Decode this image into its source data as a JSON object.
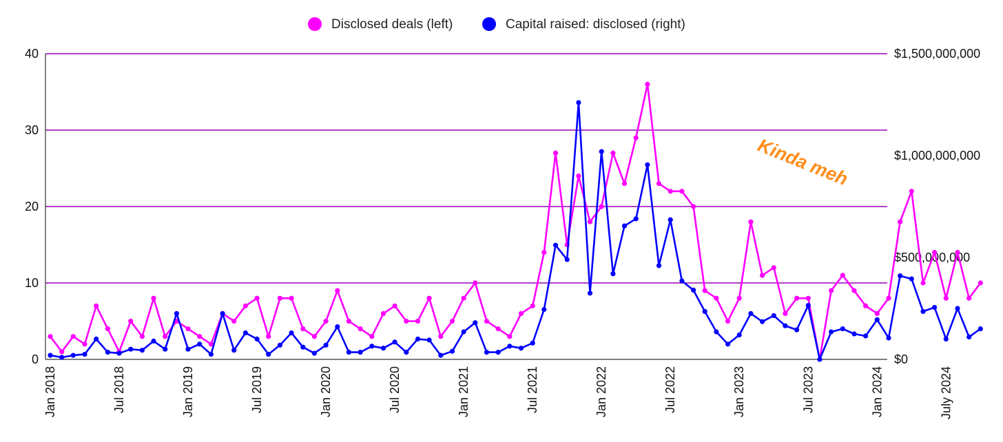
{
  "chart_data": {
    "type": "line",
    "title": "",
    "xlabel": "",
    "legend_position": "top",
    "grid": true,
    "x_tick_labels": [
      "Jan 2018",
      "Jul 2018",
      "Jan 2019",
      "Jul 2019",
      "Jan 2020",
      "Jul 2020",
      "Jan 2021",
      "Jul 2021",
      "Jan 2022",
      "Jul 2022",
      "Jan 2023",
      "Jul 2023",
      "Jan 2024",
      "July 2024"
    ],
    "y_left": {
      "ylim": [
        0,
        40
      ],
      "ticks": [
        "0",
        "10",
        "20",
        "30",
        "40"
      ]
    },
    "y_right": {
      "ylim": [
        0,
        1500000000
      ],
      "ticks": [
        "$0",
        "$500,000,000",
        "$1,000,000,000",
        "$1,500,000,000"
      ]
    },
    "series": [
      {
        "name": "Disclosed deals (left)",
        "axis": "left",
        "color": "#FF00FF",
        "values": [
          3,
          1,
          3,
          2,
          7,
          4,
          1,
          5,
          3,
          8,
          3,
          5,
          4,
          3,
          2,
          6,
          5,
          7,
          8,
          3,
          8,
          8,
          4,
          3,
          5,
          9,
          5,
          4,
          3,
          6,
          7,
          5,
          5,
          8,
          3,
          5,
          8,
          10,
          5,
          4,
          3,
          6,
          7,
          14,
          27,
          15,
          24,
          18,
          20,
          27,
          23,
          29,
          36,
          23,
          22,
          22,
          20,
          9,
          8,
          5,
          8,
          18,
          11,
          12,
          6,
          8,
          8,
          0,
          9,
          11,
          9,
          7,
          6,
          8,
          18,
          22,
          10,
          14,
          8,
          14,
          8,
          10
        ]
      },
      {
        "name": "Capital raised: disclosed (right)",
        "axis": "right",
        "color": "#0000FF",
        "values": [
          20000000,
          10000000,
          20000000,
          25000000,
          100000000,
          35000000,
          30000000,
          50000000,
          45000000,
          90000000,
          50000000,
          225000000,
          50000000,
          75000000,
          25000000,
          225000000,
          45000000,
          130000000,
          100000000,
          25000000,
          70000000,
          130000000,
          60000000,
          30000000,
          70000000,
          160000000,
          35000000,
          35000000,
          65000000,
          55000000,
          85000000,
          35000000,
          100000000,
          95000000,
          20000000,
          40000000,
          135000000,
          180000000,
          35000000,
          35000000,
          65000000,
          55000000,
          80000000,
          245000000,
          560000000,
          490000000,
          1260000000,
          325000000,
          1020000000,
          420000000,
          655000000,
          690000000,
          955000000,
          460000000,
          685000000,
          385000000,
          340000000,
          235000000,
          135000000,
          75000000,
          120000000,
          225000000,
          185000000,
          215000000,
          165000000,
          145000000,
          265000000,
          0,
          135000000,
          150000000,
          125000000,
          115000000,
          195000000,
          105000000,
          410000000,
          395000000,
          235000000,
          255000000,
          100000000,
          250000000,
          110000000,
          150000000
        ]
      }
    ],
    "annotation": {
      "text": "Kinda meh",
      "color": "#FF8C1A"
    }
  }
}
